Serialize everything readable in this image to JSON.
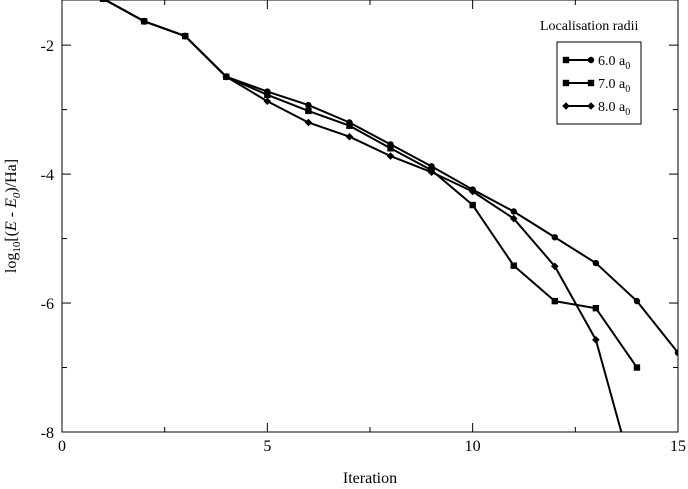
{
  "chart_data": {
    "type": "line",
    "xlabel": "Iteration",
    "ylabel_parts": {
      "log": "log",
      "log_sub": "10",
      "open": "[(",
      "e": "E",
      "minus": " - ",
      "e0": "E",
      "e0_sub": "0",
      "close": ")/Ha]"
    },
    "xlim": [
      0,
      15
    ],
    "ylim": [
      -8,
      -1.3
    ],
    "x_ticks": [
      "0",
      "5",
      "10",
      "15"
    ],
    "x_tick_values": [
      0,
      5,
      10,
      15
    ],
    "y_ticks": [
      "-2",
      "-4",
      "-6",
      "-8"
    ],
    "y_tick_values": [
      -2,
      -4,
      -6,
      -8
    ],
    "x_minor_step": 2.5,
    "y_minor_step": 1,
    "legend": {
      "title": "Localisation radii",
      "placement": "top-right"
    },
    "series": [
      {
        "name": "6.0 a",
        "name_sub": "0",
        "marker": "circle",
        "x": [
          1,
          2,
          3,
          4,
          5,
          6,
          7,
          8,
          9,
          10,
          11,
          12,
          13,
          14,
          15
        ],
        "y": [
          -1.28,
          -1.63,
          -1.86,
          -2.49,
          -2.72,
          -2.93,
          -3.2,
          -3.54,
          -3.88,
          -4.24,
          -4.58,
          -4.98,
          -5.38,
          -5.97,
          -6.77
        ]
      },
      {
        "name": "7.0 a",
        "name_sub": "0",
        "marker": "square",
        "x": [
          1,
          2,
          3,
          4,
          5,
          6,
          7,
          8,
          9,
          10,
          11,
          12,
          13,
          14
        ],
        "y": [
          -1.28,
          -1.63,
          -1.86,
          -2.49,
          -2.77,
          -3.02,
          -3.25,
          -3.6,
          -3.94,
          -4.48,
          -5.42,
          -5.97,
          -6.08,
          -7.0
        ]
      },
      {
        "name": "8.0 a",
        "name_sub": "0",
        "marker": "diamond",
        "x": [
          1,
          2,
          3,
          4,
          5,
          6,
          7,
          8,
          9,
          10,
          11,
          12,
          13,
          13.62
        ],
        "y": [
          -1.28,
          -1.63,
          -1.86,
          -2.49,
          -2.87,
          -3.2,
          -3.42,
          -3.72,
          -3.97,
          -4.27,
          -4.69,
          -5.43,
          -6.57,
          -8.0
        ]
      }
    ]
  }
}
